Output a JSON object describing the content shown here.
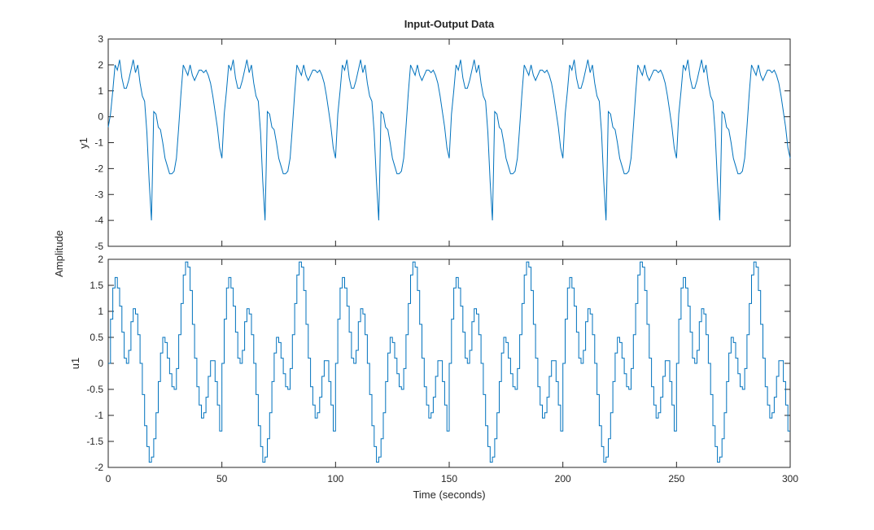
{
  "chart_data": {
    "type": "line",
    "title": "Input-Output Data",
    "shared_ylabel": "Amplitude",
    "xlabel": "Time (seconds)",
    "xlim": [
      0,
      300
    ],
    "xticks": [
      "0",
      "50",
      "100",
      "150",
      "200",
      "250",
      "300"
    ],
    "panels": [
      {
        "name": "y1",
        "ylabel": "y1",
        "ylim": [
          -5,
          3
        ],
        "yticks": [
          "3",
          "2",
          "1",
          "0",
          "-1",
          "-2",
          "-3",
          "-4",
          "-5"
        ],
        "style": "line",
        "color": "#0072bd",
        "period": 50,
        "x": [
          0,
          1,
          2,
          3,
          4,
          5,
          6,
          7,
          8,
          9,
          10,
          11,
          12,
          13,
          14,
          15,
          16,
          17,
          18,
          19,
          19.5,
          20,
          21,
          22,
          23,
          24,
          25,
          26,
          27,
          28,
          29,
          30,
          31,
          32,
          33,
          34,
          35,
          36,
          37,
          38,
          39,
          40,
          41,
          42,
          43,
          44,
          45,
          46,
          47,
          48,
          49,
          50
        ],
        "y": [
          -0.4,
          0.1,
          1.0,
          2.0,
          1.8,
          2.2,
          1.5,
          1.1,
          1.1,
          1.4,
          1.8,
          2.2,
          1.7,
          2.0,
          1.3,
          0.8,
          0.6,
          -0.6,
          -2.5,
          -4.0,
          -2.0,
          0.2,
          0.1,
          -0.4,
          -0.5,
          -1.0,
          -1.6,
          -1.9,
          -2.2,
          -2.2,
          -2.1,
          -1.6,
          -0.4,
          0.9,
          2.0,
          1.8,
          1.6,
          2.0,
          1.6,
          1.4,
          1.6,
          1.8,
          1.8,
          1.7,
          1.8,
          1.6,
          1.3,
          0.8,
          0.2,
          -0.4,
          -1.2,
          -1.6
        ]
      },
      {
        "name": "u1",
        "ylabel": "u1",
        "ylim": [
          -2,
          2
        ],
        "yticks": [
          "2",
          "1.5",
          "1",
          "0.5",
          "0",
          "-0.5",
          "-1",
          "-1.5",
          "-2"
        ],
        "style": "stairs",
        "color": "#0072bd",
        "period": 50,
        "x": [
          0,
          1,
          2,
          3,
          4,
          5,
          6,
          7,
          8,
          9,
          10,
          11,
          12,
          13,
          14,
          15,
          16,
          17,
          18,
          19,
          20,
          21,
          22,
          23,
          24,
          25,
          26,
          27,
          28,
          29,
          30,
          31,
          32,
          33,
          34,
          35,
          36,
          37,
          38,
          39,
          40,
          41,
          42,
          43,
          44,
          45,
          46,
          47,
          48,
          49
        ],
        "y": [
          0.0,
          0.85,
          1.45,
          1.65,
          1.45,
          1.1,
          0.6,
          0.1,
          0.0,
          0.25,
          0.8,
          1.05,
          0.95,
          0.55,
          0.0,
          -0.6,
          -1.2,
          -1.6,
          -1.9,
          -1.8,
          -1.45,
          -0.95,
          -0.35,
          0.2,
          0.5,
          0.4,
          0.1,
          -0.2,
          -0.45,
          -0.5,
          -0.1,
          0.55,
          1.15,
          1.7,
          1.95,
          1.85,
          1.4,
          0.75,
          0.1,
          -0.45,
          -0.8,
          -1.05,
          -0.95,
          -0.65,
          -0.25,
          0.05,
          0.05,
          -0.35,
          -0.8,
          -1.3
        ]
      }
    ]
  }
}
